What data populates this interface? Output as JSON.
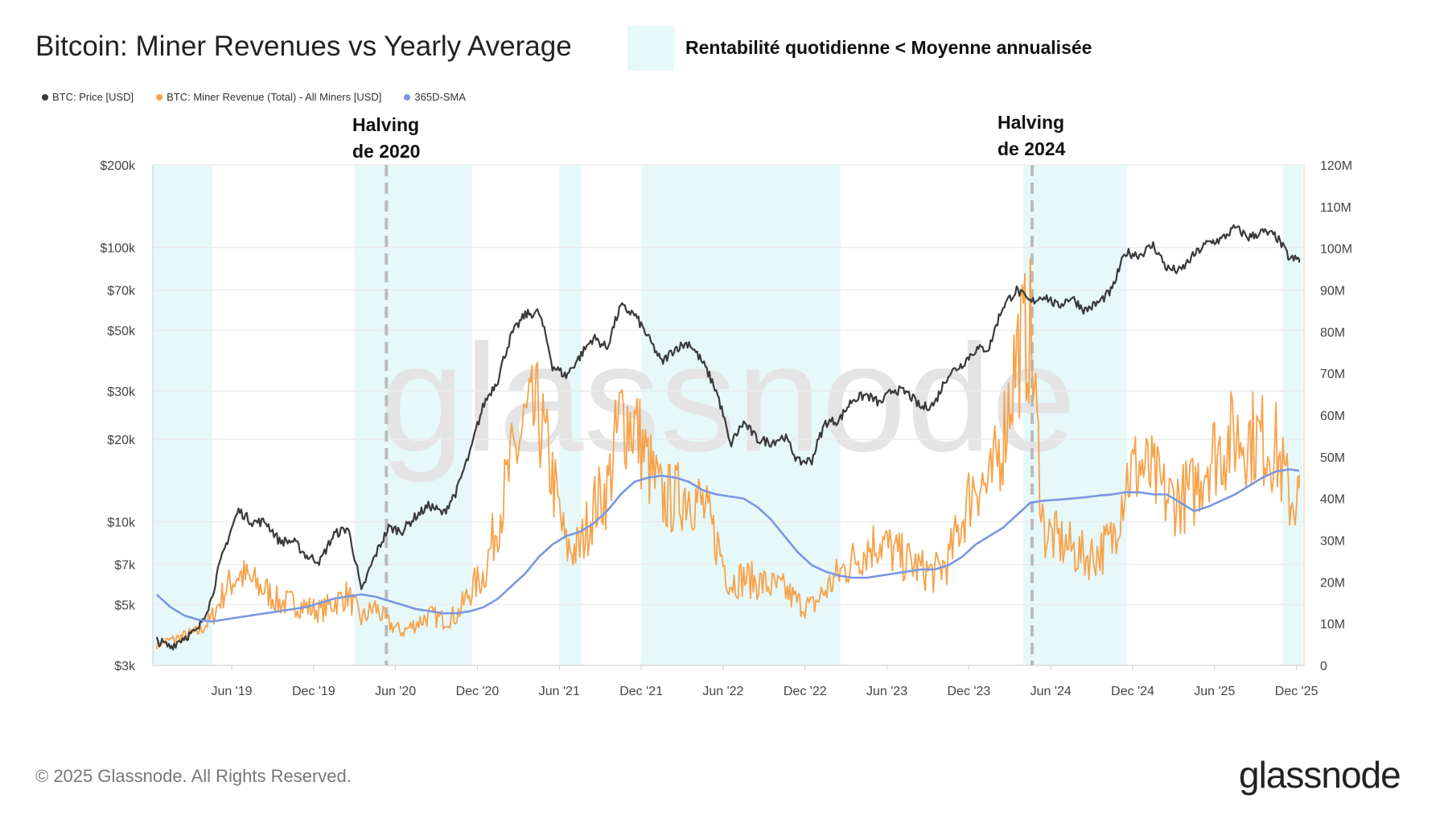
{
  "header": {
    "title": "Bitcoin: Miner Revenues vs Yearly Average",
    "shade_legend": "Rentabilité quotidienne < Moyenne annualisée"
  },
  "legend": [
    {
      "label": "BTC: Price [USD]",
      "color": "#3a3a3a"
    },
    {
      "label": "BTC: Miner Revenue (Total) - All Miners [USD]",
      "color": "#f7a24a"
    },
    {
      "label": "365D-SMA",
      "color": "#7b96e3"
    }
  ],
  "annotations": {
    "halving_2020": {
      "line1": "Halving",
      "line2": "de 2020",
      "date": "2020-05-11"
    },
    "halving_2024": {
      "line1": "Halving",
      "line2": "de 2024",
      "date": "2024-04-20"
    }
  },
  "footer": {
    "copyright": "© 2025 Glassnode. All Rights Reserved.",
    "logo": "glassnode",
    "watermark": "glassnode"
  },
  "chart_data": {
    "type": "line",
    "title": "Bitcoin: Miner Revenues vs Yearly Average",
    "x_ticks": [
      "Jun '19",
      "Dec '19",
      "Jun '20",
      "Dec '20",
      "Jun '21",
      "Dec '21",
      "Jun '22",
      "Dec '22",
      "Jun '23",
      "Dec '23",
      "Jun '24",
      "Dec '24",
      "Jun '25",
      "Dec '25"
    ],
    "y_left": {
      "scale": "log",
      "ticks": [
        "$3k",
        "$5k",
        "$7k",
        "$10k",
        "$20k",
        "$30k",
        "$50k",
        "$70k",
        "$100k",
        "$200k"
      ],
      "tick_values": [
        3000,
        5000,
        7000,
        10000,
        20000,
        30000,
        50000,
        70000,
        100000,
        200000
      ],
      "range": [
        3000,
        200000
      ]
    },
    "y_right": {
      "scale": "linear",
      "ticks": [
        "0",
        "10M",
        "20M",
        "30M",
        "40M",
        "50M",
        "60M",
        "70M",
        "80M",
        "90M",
        "100M",
        "110M",
        "120M"
      ],
      "range": [
        0,
        120
      ]
    },
    "shaded_periods": [
      [
        "2018-12",
        "2019-04"
      ],
      [
        "2020-03",
        "2020-11"
      ],
      [
        "2021-06",
        "2021-07"
      ],
      [
        "2021-12",
        "2023-02"
      ],
      [
        "2024-04",
        "2024-11"
      ],
      [
        "2025-11",
        "2025-12"
      ]
    ],
    "dates": [
      "2018-12",
      "2019-01",
      "2019-02",
      "2019-03",
      "2019-04",
      "2019-05",
      "2019-06",
      "2019-07",
      "2019-08",
      "2019-09",
      "2019-10",
      "2019-11",
      "2019-12",
      "2020-01",
      "2020-02",
      "2020-03",
      "2020-04",
      "2020-05",
      "2020-06",
      "2020-07",
      "2020-08",
      "2020-09",
      "2020-10",
      "2020-11",
      "2020-12",
      "2021-01",
      "2021-02",
      "2021-03",
      "2021-04",
      "2021-05",
      "2021-06",
      "2021-07",
      "2021-08",
      "2021-09",
      "2021-10",
      "2021-11",
      "2021-12",
      "2022-01",
      "2022-02",
      "2022-03",
      "2022-04",
      "2022-05",
      "2022-06",
      "2022-07",
      "2022-08",
      "2022-09",
      "2022-10",
      "2022-11",
      "2022-12",
      "2023-01",
      "2023-02",
      "2023-03",
      "2023-04",
      "2023-05",
      "2023-06",
      "2023-07",
      "2023-08",
      "2023-09",
      "2023-10",
      "2023-11",
      "2023-12",
      "2024-01",
      "2024-02",
      "2024-03",
      "2024-04",
      "2024-05",
      "2024-06",
      "2024-07",
      "2024-08",
      "2024-09",
      "2024-10",
      "2024-11",
      "2024-12",
      "2025-01",
      "2025-02",
      "2025-03",
      "2025-04",
      "2025-05",
      "2025-06",
      "2025-07",
      "2025-08",
      "2025-09",
      "2025-10",
      "2025-11",
      "2025-12"
    ],
    "series": [
      {
        "name": "BTC: Price [USD]",
        "axis": "left",
        "color": "#3a3a3a",
        "values": [
          3700,
          3500,
          3800,
          4000,
          5200,
          8000,
          11000,
          10000,
          10000,
          8500,
          8500,
          7500,
          7200,
          9000,
          9500,
          5500,
          7500,
          9500,
          9300,
          10500,
          11500,
          10700,
          13000,
          18000,
          27000,
          33000,
          48000,
          57000,
          58000,
          37000,
          34000,
          40000,
          47000,
          43000,
          61000,
          57000,
          47000,
          38000,
          43000,
          45000,
          38000,
          30000,
          19000,
          23000,
          20000,
          19500,
          20500,
          16500,
          16800,
          23000,
          23500,
          28000,
          29000,
          27000,
          30500,
          29500,
          26000,
          27000,
          34500,
          37500,
          42500,
          43000,
          61000,
          70000,
          63000,
          67000,
          61000,
          66000,
          59000,
          63000,
          70000,
          96000,
          94000,
          102000,
          84000,
          82000,
          94000,
          104000,
          107000,
          118000,
          109000,
          114000,
          110000,
          91000,
          90000
        ]
      },
      {
        "name": "BTC: Miner Revenue (Total) - All Miners [USD]",
        "axis": "right",
        "unit": "M USD",
        "color": "#f7a24a",
        "values": [
          5,
          6,
          7,
          8,
          11,
          18,
          22,
          20,
          18,
          15,
          15,
          14,
          13,
          15,
          17,
          11,
          14,
          10,
          8,
          10,
          12,
          11,
          12,
          18,
          22,
          35,
          48,
          58,
          60,
          45,
          28,
          28,
          38,
          42,
          60,
          58,
          48,
          40,
          40,
          42,
          38,
          30,
          20,
          21,
          20,
          19,
          18,
          15,
          14,
          18,
          22,
          25,
          28,
          30,
          27,
          25,
          23,
          22,
          25,
          35,
          45,
          42,
          55,
          75,
          80,
          32,
          30,
          28,
          26,
          27,
          30,
          45,
          48,
          45,
          40,
          40,
          42,
          50,
          52,
          55,
          55,
          54,
          52,
          40,
          40
        ]
      },
      {
        "name": "365D-SMA",
        "axis": "right",
        "unit": "M USD",
        "color": "#7b96e3",
        "values": [
          17,
          14,
          12,
          11,
          10.5,
          11,
          11.5,
          12,
          12.5,
          13,
          13.5,
          14,
          15,
          16,
          16.5,
          17,
          16.5,
          15.5,
          14.5,
          13.5,
          13,
          12.5,
          12.5,
          13,
          14,
          16,
          19,
          22,
          26,
          29,
          31,
          32,
          34,
          37,
          41,
          44,
          45,
          45.5,
          45,
          44,
          42,
          41,
          40.5,
          40,
          38,
          35,
          31,
          27,
          24,
          22.5,
          21.5,
          21,
          21,
          21.5,
          22,
          22.5,
          23,
          23,
          24,
          26,
          29,
          31,
          33,
          36,
          39,
          39.5,
          39.7,
          40,
          40.3,
          40.7,
          41,
          41.5,
          41.5,
          41,
          41,
          39,
          37,
          38,
          39.5,
          41,
          43,
          45,
          46.5,
          47,
          46.5
        ]
      }
    ],
    "grid": true,
    "legend_position": "top-left"
  }
}
